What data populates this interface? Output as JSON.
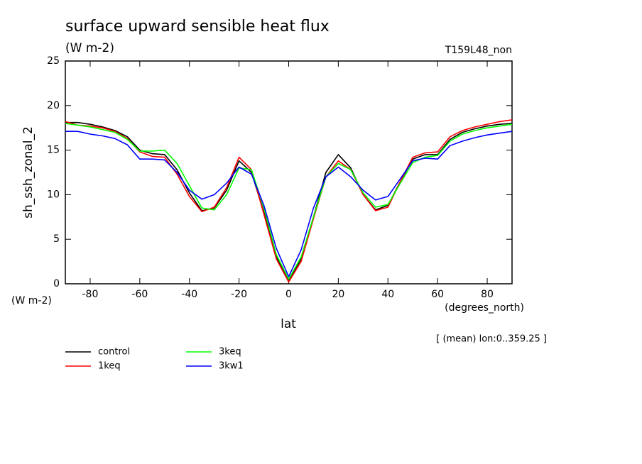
{
  "chart_data": {
    "type": "line",
    "title": "surface upward sensible heat flux",
    "subtitle": "(W m-2)",
    "run_label": "T159L48_non",
    "ylabel": "sh_ssh_zonal_2",
    "y_units": "(W m-2)",
    "xlabel": "lat",
    "x_units": "(degrees_north)",
    "annotation": "[ (mean) lon:0..359.25 ]",
    "x": [
      -90,
      -85,
      -80,
      -75,
      -70,
      -65,
      -60,
      -55,
      -50,
      -45,
      -40,
      -35,
      -30,
      -25,
      -20,
      -15,
      -10,
      -5,
      0,
      5,
      10,
      15,
      20,
      25,
      30,
      35,
      40,
      45,
      50,
      55,
      60,
      65,
      70,
      75,
      80,
      85,
      90
    ],
    "series": [
      {
        "name": "control",
        "color": "#000000",
        "values": [
          18.1,
          18.1,
          17.9,
          17.6,
          17.2,
          16.5,
          15.0,
          14.6,
          14.5,
          12.8,
          10.2,
          8.2,
          8.5,
          10.5,
          13.8,
          12.5,
          8.0,
          3.0,
          0.3,
          2.8,
          7.5,
          12.5,
          14.5,
          13.0,
          10.0,
          8.3,
          8.8,
          11.5,
          14.0,
          14.5,
          14.5,
          16.2,
          17.0,
          17.4,
          17.7,
          17.9,
          18.0
        ]
      },
      {
        "name": "1keq",
        "color": "#ff0000",
        "values": [
          18.2,
          17.8,
          17.7,
          17.5,
          17.1,
          16.3,
          14.8,
          14.3,
          14.2,
          12.3,
          9.8,
          8.1,
          8.6,
          10.8,
          14.2,
          12.8,
          7.8,
          2.8,
          0.2,
          2.5,
          7.3,
          12.0,
          13.8,
          12.8,
          10.0,
          8.2,
          8.6,
          11.5,
          14.2,
          14.7,
          14.8,
          16.5,
          17.2,
          17.6,
          17.9,
          18.2,
          18.4
        ]
      },
      {
        "name": "3keq",
        "color": "#00ff00",
        "values": [
          18.0,
          17.8,
          17.6,
          17.3,
          17.0,
          16.2,
          14.9,
          14.9,
          15.0,
          13.5,
          11.0,
          8.5,
          8.3,
          10.0,
          13.0,
          12.8,
          8.5,
          3.3,
          0.5,
          3.0,
          7.5,
          12.0,
          13.5,
          12.8,
          10.2,
          8.6,
          8.9,
          11.3,
          13.6,
          14.2,
          14.4,
          16.0,
          16.8,
          17.2,
          17.5,
          17.7,
          17.9
        ]
      },
      {
        "name": "3kw1",
        "color": "#0000ff",
        "values": [
          17.1,
          17.1,
          16.8,
          16.6,
          16.3,
          15.6,
          14.0,
          14.0,
          13.9,
          12.5,
          10.5,
          9.5,
          10.0,
          11.3,
          13.1,
          12.3,
          8.8,
          4.0,
          0.8,
          3.8,
          8.5,
          12.0,
          13.1,
          12.0,
          10.5,
          9.4,
          9.8,
          11.8,
          13.8,
          14.1,
          14.0,
          15.5,
          16.0,
          16.4,
          16.7,
          16.9,
          17.1
        ]
      }
    ],
    "xlim": [
      -90,
      90
    ],
    "xticks": [
      -80,
      -60,
      -40,
      -20,
      0,
      20,
      40,
      60,
      80
    ],
    "ylim": [
      0,
      25
    ],
    "yticks": [
      0,
      5,
      10,
      15,
      20,
      25
    ]
  }
}
